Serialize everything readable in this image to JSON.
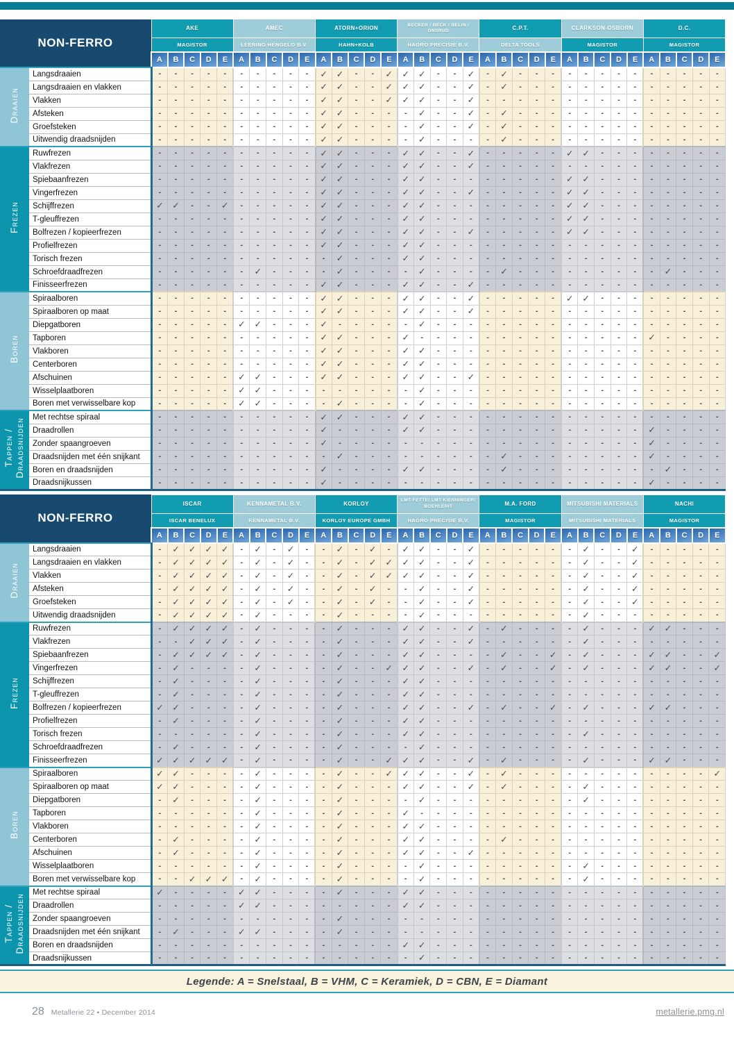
{
  "colors": {
    "top_bar": "#0A7D96",
    "navy_header": "#174A6E",
    "teal_dark": "#129CB2",
    "teal_light": "#9ECDD9",
    "category_light": "#8FC5D5",
    "category_dark": "#0D95AE",
    "letter_gradient_top": "#2B66AC",
    "letter_gradient_bottom": "#6FA6DB",
    "cell_cream": "#F9F0DA",
    "cell_white": "#FFFFFF",
    "cell_gray_dark": "#C9CDD3",
    "cell_gray_light": "#DCDEE1",
    "section_line": "#2E9FBC",
    "check_color": "#4C4C4C",
    "legend_bg": "#FAF3DD"
  },
  "letters": [
    "A",
    "B",
    "C",
    "D",
    "E"
  ],
  "check_glyph": "✓",
  "dash_glyph": "-",
  "sections": [
    {
      "label": "Draaien",
      "shade": "light",
      "rows": [
        "Langsdraaien",
        "Langsdraaien en vlakken",
        "Vlakken",
        "Afsteken",
        "Groefsteken",
        "Uitwendig draadsnijden"
      ]
    },
    {
      "label": "Frezen",
      "shade": "dark",
      "rows": [
        "Ruwfrezen",
        "Vlakfrezen",
        "Spiebaanfrezen",
        "Vingerfrezen",
        "Schijffrezen",
        "T-gleuffrezen",
        "Bolfrezen / kopieerfrezen",
        "Profielfrezen",
        "Torisch frezen",
        "Schroefdraadfrezen",
        "Finisseerfrezen"
      ]
    },
    {
      "label": "Boren",
      "shade": "light",
      "rows": [
        "Spiraalboren",
        "Spiraalboren op maat",
        "Diepgatboren",
        "Tapboren",
        "Vlakboren",
        "Centerboren",
        "Afschuinen",
        "Wisselplaatboren",
        "Boren met verwisselbare kop"
      ]
    },
    {
      "label": "Tappen / Draadsnijden",
      "shade": "dark",
      "rows": [
        "Met rechtse spiraal",
        "Draadrollen",
        "Zonder spaangroeven",
        "Draadsnijden met één snijkant",
        "Boren en draadsnijden",
        "Draadsnijkussen"
      ]
    }
  ],
  "tables": [
    {
      "title": "NON-FERRO",
      "companies": [
        {
          "name": "AKE",
          "distributor": "MAGISTOR"
        },
        {
          "name": "AMEC",
          "distributor": "LEERING HENGELO B.V."
        },
        {
          "name": "ATORN+ORION",
          "distributor": "HAHN+KOLB"
        },
        {
          "name": "BECKER / BECK / BELIN / ONSRUD",
          "distributor": "HAGRO PRECISIE B.V."
        },
        {
          "name": "C.P.T.",
          "distributor": "DELTA TOOLS",
          "distributor_shade": "light"
        },
        {
          "name": "CLARKSON-OSBORN",
          "distributor": "MAGISTOR",
          "distributor_shade": "dark"
        },
        {
          "name": "D.C.",
          "distributor": "MAGISTOR"
        }
      ],
      "cells": [
        [
          "-----",
          "-----",
          "vv--v",
          "vv--v",
          "-v---",
          "-----",
          "-----"
        ],
        [
          "-----",
          "-----",
          "vv--v",
          "vv--v",
          "-v---",
          "-----",
          "-----"
        ],
        [
          "-----",
          "-----",
          "vv--v",
          "vv--v",
          "-----",
          "-----",
          "-----"
        ],
        [
          "-----",
          "-----",
          "vv---",
          "-v--v",
          "-v---",
          "-----",
          "-----"
        ],
        [
          "-----",
          "-----",
          "vv---",
          "-v--v",
          "-v---",
          "-----",
          "-----"
        ],
        [
          "-----",
          "-----",
          "vv---",
          "-v---",
          "-v---",
          "-----",
          "-----"
        ],
        [
          "-----",
          "-----",
          "vv---",
          "vv--v",
          "-----",
          "vv---",
          "-----"
        ],
        [
          "-----",
          "-----",
          "vv---",
          "vv--v",
          "-----",
          "-----",
          "-----"
        ],
        [
          "-----",
          "-----",
          "vv---",
          "vv---",
          "-----",
          "vv---",
          "-----"
        ],
        [
          "-----",
          "-----",
          "vv---",
          "vv--v",
          "-----",
          "vv---",
          "-----"
        ],
        [
          "vv--v",
          "-----",
          "vv---",
          "vv---",
          "-----",
          "vv---",
          "-----"
        ],
        [
          "-----",
          "-----",
          "vv---",
          "vv---",
          "-----",
          "vv---",
          "-----"
        ],
        [
          "-----",
          "-----",
          "vv---",
          "vv--v",
          "-----",
          "vv---",
          "-----"
        ],
        [
          "-----",
          "-----",
          "vv---",
          "vv---",
          "-----",
          "-----",
          "-----"
        ],
        [
          "-----",
          "-----",
          "-v---",
          "vv---",
          "-----",
          "-----",
          "-----"
        ],
        [
          "-----",
          "-v---",
          "-v---",
          "-v---",
          "-v---",
          "-----",
          "-v---"
        ],
        [
          "-----",
          "-----",
          "vv---",
          "vv--v",
          "-----",
          "-----",
          "-----"
        ],
        [
          "-----",
          "-----",
          "vv---",
          "vv--v",
          "-----",
          "vv---",
          "-----"
        ],
        [
          "-----",
          "-----",
          "vv---",
          "vv--v",
          "-----",
          "-----",
          "-----"
        ],
        [
          "-----",
          "vv---",
          "v----",
          "-v---",
          "-----",
          "-----",
          "-----"
        ],
        [
          "-----",
          "-----",
          "vv---",
          "v----",
          "-----",
          "-----",
          "v----"
        ],
        [
          "-----",
          "-----",
          "vv---",
          "vv---",
          "-----",
          "-----",
          "-----"
        ],
        [
          "-----",
          "-----",
          "vv---",
          "vv---",
          "-----",
          "-----",
          "-----"
        ],
        [
          "-----",
          "vv---",
          "vv---",
          "vv--v",
          "-----",
          "-----",
          "-----"
        ],
        [
          "-----",
          "vv---",
          "-----",
          "-v---",
          "-----",
          "-----",
          "-----"
        ],
        [
          "-----",
          "vv---",
          "-v---",
          "-v---",
          "-----",
          "-----",
          "-----"
        ],
        [
          "-----",
          "-----",
          "vv---",
          "vv---",
          "-----",
          "-----",
          "-----"
        ],
        [
          "-----",
          "-----",
          "v----",
          "vv---",
          "-----",
          "-----",
          "v----"
        ],
        [
          "-----",
          "-----",
          "v----",
          "-----",
          "-----",
          "-----",
          "v----"
        ],
        [
          "-----",
          "-----",
          "-v---",
          "-----",
          "-v---",
          "-----",
          "v----"
        ],
        [
          "-----",
          "-----",
          "v----",
          "vv---",
          "-v---",
          "-----",
          "-v---"
        ],
        [
          "-----",
          "-----",
          "v----",
          "-----",
          "-----",
          "-----",
          "v----"
        ]
      ]
    },
    {
      "title": "NON-FERRO",
      "companies": [
        {
          "name": "ISCAR",
          "distributor": "ISCAR BENELUX"
        },
        {
          "name": "KENNAMETAL B.V.",
          "distributor": "KENNAMETAL B.V."
        },
        {
          "name": "KORLOY",
          "distributor": "KORLOY EUROPE GMBH"
        },
        {
          "name": "LMT-FETTE/ LMT-KIENNINGER/ BOEHLERIT",
          "distributor": "HAGRO PRECISIE B.V."
        },
        {
          "name": "M.A. FORD",
          "distributor": "MAGISTOR"
        },
        {
          "name": "MITSUBISHI MATERIALS",
          "distributor": "MITSUBISHI MATERIALS"
        },
        {
          "name": "NACHI",
          "distributor": "MAGISTOR"
        }
      ],
      "cells": [
        [
          "-vvvv",
          "-v-v-",
          "-v-v-",
          "vv--v",
          "-----",
          "-v--v",
          "-----"
        ],
        [
          "-vvvv",
          "-v-v-",
          "-v-vv",
          "vv--v",
          "-----",
          "-v--v",
          "-----"
        ],
        [
          "-vvvv",
          "-v-v-",
          "-v-vv",
          "vv--v",
          "-----",
          "-v--v",
          "-----"
        ],
        [
          "-vvvv",
          "-v-v-",
          "-v-v-",
          "-v--v",
          "-----",
          "-v--v",
          "-----"
        ],
        [
          "-vvvv",
          "-v-v-",
          "-v-v-",
          "-v--v",
          "-----",
          "-v--v",
          "-----"
        ],
        [
          "-vvvv",
          "-v---",
          "-v---",
          "-v---",
          "-----",
          "-v---",
          "-----"
        ],
        [
          "-vvvv",
          "-v---",
          "-v---",
          "vv--v",
          "-v---",
          "-v---",
          "vv---"
        ],
        [
          "--vvv",
          "-v---",
          "-v---",
          "vv--v",
          "-----",
          "-v---",
          "-----"
        ],
        [
          "-vvvv",
          "-v---",
          "-v---",
          "vv---",
          "-v--v",
          "-v---",
          "vv--v"
        ],
        [
          "-v---",
          "-v---",
          "-v--v",
          "vv--v",
          "-v--v",
          "-v---",
          "vv--v"
        ],
        [
          "-v---",
          "-v---",
          "-v---",
          "vv---",
          "-----",
          "-----",
          "-----"
        ],
        [
          "-v---",
          "-v---",
          "-v---",
          "vv---",
          "-----",
          "-----",
          "-----"
        ],
        [
          "vv---",
          "-v---",
          "-v---",
          "vv--v",
          "-v--v",
          "-v---",
          "vv---"
        ],
        [
          "-v---",
          "-v---",
          "-v---",
          "vv---",
          "-----",
          "-----",
          "-----"
        ],
        [
          "-----",
          "-v---",
          "-v---",
          "vv---",
          "-----",
          "-v---",
          "-----"
        ],
        [
          "-v---",
          "-v---",
          "-v---",
          "-v---",
          "-----",
          "-----",
          "-----"
        ],
        [
          "vvvvv",
          "-v---",
          "-v--v",
          "vv--v",
          "-v---",
          "-v---",
          "vv---"
        ],
        [
          "vv---",
          "-v---",
          "-v--v",
          "vv--v",
          "-v---",
          "-----",
          "----v"
        ],
        [
          "vv---",
          "-v---",
          "-v---",
          "vv--v",
          "-v---",
          "-v---",
          "-----"
        ],
        [
          "-v---",
          "-v---",
          "-v---",
          "-v---",
          "-----",
          "-v---",
          "-----"
        ],
        [
          "-----",
          "-v---",
          "-v---",
          "v----",
          "-----",
          "-----",
          "-----"
        ],
        [
          "-----",
          "-v---",
          "-v---",
          "vv---",
          "-----",
          "-----",
          "-----"
        ],
        [
          "-v---",
          "-v---",
          "-v---",
          "vv---",
          "-v---",
          "-----",
          "-----"
        ],
        [
          "-v---",
          "-v---",
          "-v---",
          "vv--v",
          "-----",
          "-----",
          "-----"
        ],
        [
          "-----",
          "-v---",
          "-v---",
          "-v---",
          "-----",
          "-v---",
          "-----"
        ],
        [
          "--vvv",
          "-v---",
          "-v---",
          "-v---",
          "-----",
          "-v---",
          "-----"
        ],
        [
          "v----",
          "vv---",
          "-v---",
          "vv---",
          "-----",
          "-----",
          "-----"
        ],
        [
          "-----",
          "vv---",
          "-----",
          "vv---",
          "-----",
          "-----",
          "-----"
        ],
        [
          "-----",
          "-----",
          "-v---",
          "-----",
          "-----",
          "-----",
          "-----"
        ],
        [
          "-v---",
          "vv---",
          "-v---",
          "-----",
          "-----",
          "-----",
          "-----"
        ],
        [
          "-----",
          "-----",
          "-----",
          "vv---",
          "-----",
          "-----",
          "-----"
        ],
        [
          "-----",
          "-----",
          "-----",
          "-v---",
          "-----",
          "-----",
          "-----"
        ]
      ]
    }
  ],
  "legend": {
    "text": "Legende: A = Snelstaal, B = VHM, C = Keramiek, D = CBN, E = Diamant"
  },
  "footer": {
    "page_number": "28",
    "issue": "Metallerie 22 • December 2014",
    "site": "metallerie.pmg.nl"
  }
}
